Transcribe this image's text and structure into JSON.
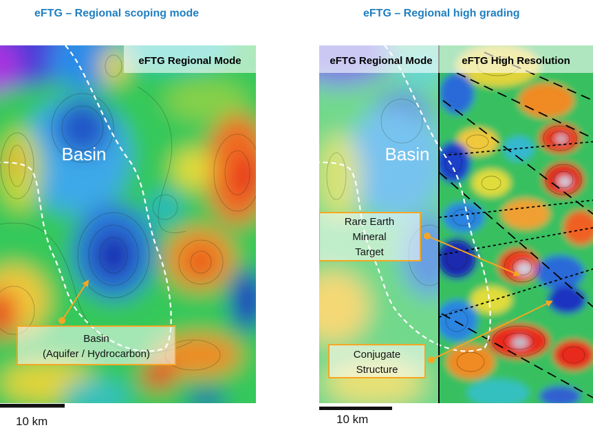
{
  "left_panel": {
    "title": "eFTG – Regional scoping mode",
    "mode_label": "eFTG Regional Mode",
    "basin_label": "Basin",
    "callout_line1": "Basin",
    "callout_line2": "(Aquifer / Hydrocarbon)",
    "scale_label": "10 km"
  },
  "right_panel": {
    "title": "eFTG – Regional high grading",
    "mode_label_left": "eFTG Regional Mode",
    "mode_label_right": "eFTG High Resolution",
    "basin_label": "Basin",
    "target_line1": "Rare Earth",
    "target_line2": "Mineral",
    "target_line3": "Target",
    "structure_line1": "Conjugate",
    "structure_line2": "Structure",
    "scale_label": "10 km"
  },
  "colors": {
    "title": "#1f7fc0",
    "callout_border": "#f5a623",
    "arrow": "#f5a623",
    "basin_boundary": "#ffffff",
    "fault_lines": "#000000"
  }
}
